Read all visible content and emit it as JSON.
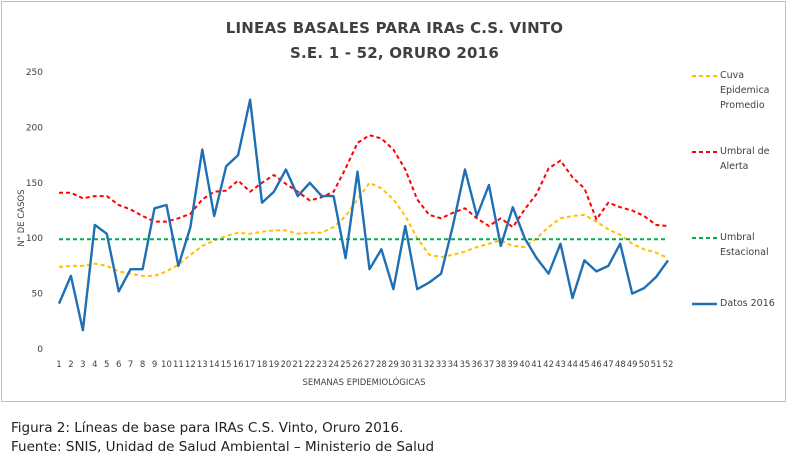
{
  "chart_data": {
    "type": "line",
    "title": "LINEAS BASALES PARA IRAs C.S. VINTO",
    "subtitle": "S.E. 1 - 52, ORURO 2016",
    "xlabel": "SEMANAS EPIDEMIOLÓGICAS",
    "ylabel": "N° DE CASOS",
    "ylim": [
      0,
      250
    ],
    "yticks": [
      0,
      50,
      100,
      150,
      200,
      250
    ],
    "grid": false,
    "legend_position": "right",
    "x": [
      1,
      2,
      3,
      4,
      5,
      6,
      7,
      8,
      9,
      10,
      11,
      12,
      13,
      14,
      15,
      16,
      17,
      18,
      19,
      20,
      21,
      22,
      23,
      24,
      25,
      26,
      27,
      28,
      29,
      30,
      31,
      32,
      33,
      34,
      35,
      36,
      37,
      38,
      39,
      40,
      41,
      42,
      43,
      44,
      45,
      46,
      47,
      48,
      49,
      50,
      51,
      52
    ],
    "series": [
      {
        "name": "Cuva Epidemica Promedio",
        "color": "#ffc000",
        "style": "dashed",
        "values": [
          74,
          75,
          75,
          77,
          75,
          70,
          68,
          66,
          66,
          70,
          76,
          85,
          93,
          98,
          102,
          105,
          104,
          106,
          107,
          107,
          104,
          105,
          105,
          110,
          120,
          135,
          150,
          145,
          135,
          120,
          100,
          85,
          83,
          85,
          88,
          92,
          95,
          98,
          93,
          92,
          100,
          110,
          118,
          120,
          121,
          115,
          108,
          103,
          95,
          90,
          87,
          82
        ]
      },
      {
        "name": "Umbral de Alerta",
        "color": "#ff0000",
        "style": "dashed",
        "values": [
          141,
          141,
          136,
          138,
          138,
          130,
          126,
          120,
          115,
          115,
          118,
          122,
          135,
          142,
          143,
          152,
          142,
          150,
          157,
          149,
          142,
          134,
          137,
          142,
          163,
          186,
          193,
          190,
          180,
          162,
          135,
          121,
          118,
          123,
          127,
          118,
          111,
          118,
          110,
          126,
          140,
          163,
          170,
          155,
          145,
          117,
          132,
          128,
          125,
          120,
          112,
          111
        ]
      },
      {
        "name": "Umbral Estacional",
        "color": "#00b050",
        "style": "dashed",
        "values": [
          99,
          99,
          99,
          99,
          99,
          99,
          99,
          99,
          99,
          99,
          99,
          99,
          99,
          99,
          99,
          99,
          99,
          99,
          99,
          99,
          99,
          99,
          99,
          99,
          99,
          99,
          99,
          99,
          99,
          99,
          99,
          99,
          99,
          99,
          99,
          99,
          99,
          99,
          99,
          99,
          99,
          99,
          99,
          99,
          99,
          99,
          99,
          99,
          99,
          99,
          99,
          99
        ]
      },
      {
        "name": "Datos 2016",
        "color": "#1f6fb4",
        "style": "solid",
        "values": [
          41,
          66,
          17,
          112,
          104,
          52,
          72,
          72,
          127,
          130,
          75,
          110,
          180,
          120,
          165,
          175,
          225,
          132,
          142,
          162,
          138,
          150,
          138,
          138,
          82,
          160,
          72,
          90,
          54,
          111,
          54,
          60,
          68,
          112,
          162,
          120,
          148,
          93,
          128,
          100,
          82,
          68,
          95,
          46,
          80,
          70,
          75,
          95,
          50,
          55,
          65,
          80
        ]
      }
    ]
  },
  "caption": {
    "figure": "Figura 2:  Líneas de base para IRAs C.S. Vinto, Oruro 2016.",
    "source": "Fuente: SNIS, Unidad de Salud Ambiental – Ministerio de Salud"
  }
}
